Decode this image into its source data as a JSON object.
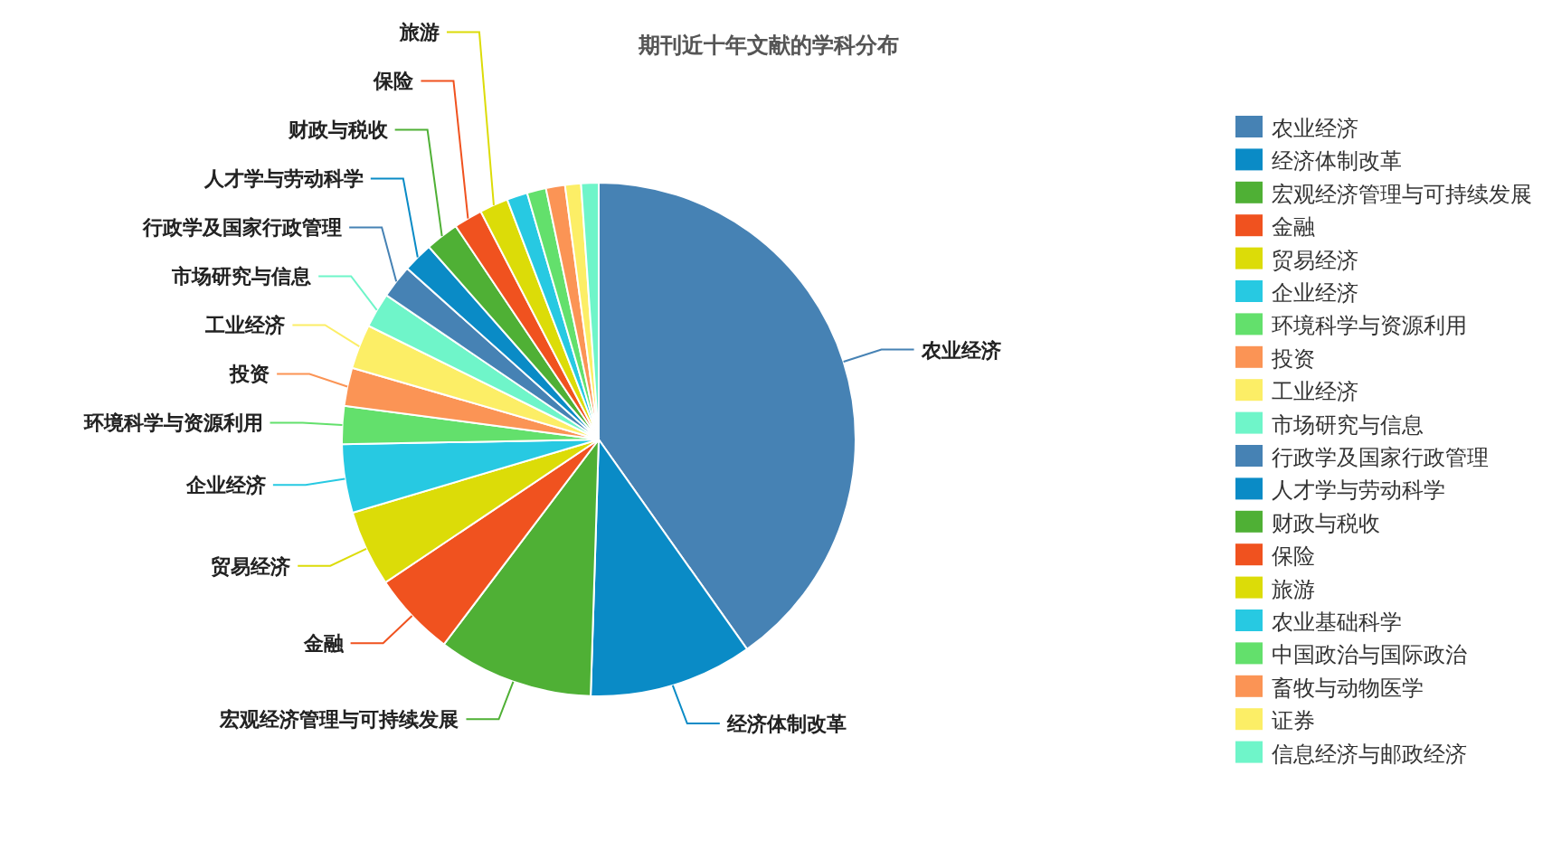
{
  "chart_data": {
    "type": "pie",
    "title": "期刊近十年文献的学科分布",
    "categories": [
      "农业经济",
      "经济体制改革",
      "宏观经济管理与可持续发展",
      "金融",
      "贸易经济",
      "企业经济",
      "环境科学与资源利用",
      "投资",
      "工业经济",
      "市场研究与信息",
      "行政学及国家行政管理",
      "人才学与劳动科学",
      "财政与税收",
      "保险",
      "旅游",
      "农业基础科学",
      "中国政治与国际政治",
      "畜牧与动物医学",
      "证券",
      "信息经济与邮政经济"
    ],
    "values": [
      40.2,
      10.3,
      9.8,
      5.3,
      4.8,
      4.3,
      2.4,
      2.4,
      2.8,
      2.2,
      2.1,
      1.9,
      2.1,
      1.8,
      1.8,
      1.3,
      1.2,
      1.2,
      1.0,
      1.1
    ],
    "colors": [
      "#4682b4",
      "#0a8bc6",
      "#4fb035",
      "#f0521f",
      "#dcdc08",
      "#27c9e2",
      "#63e06c",
      "#fb9455",
      "#fcee66",
      "#6ff5c9",
      "#4682b4",
      "#0a8bc6",
      "#4fb035",
      "#f0521f",
      "#dcdc08",
      "#27c9e2",
      "#63e06c",
      "#fb9455",
      "#fcee66",
      "#6ff5c9"
    ],
    "value_labels": [
      "农业经济",
      "经济体制改革",
      "宏观经济管理与可持续发展",
      "金融",
      "贸易经济",
      "企业经济",
      "环境科学与资源利用",
      "投资",
      "工业经济",
      "市场研究与信息",
      "行政学及国家行政管理",
      "人才学与劳动科学",
      "财政与税收",
      "保险",
      "旅游",
      null,
      null,
      null,
      null,
      null
    ],
    "legend": "right"
  }
}
